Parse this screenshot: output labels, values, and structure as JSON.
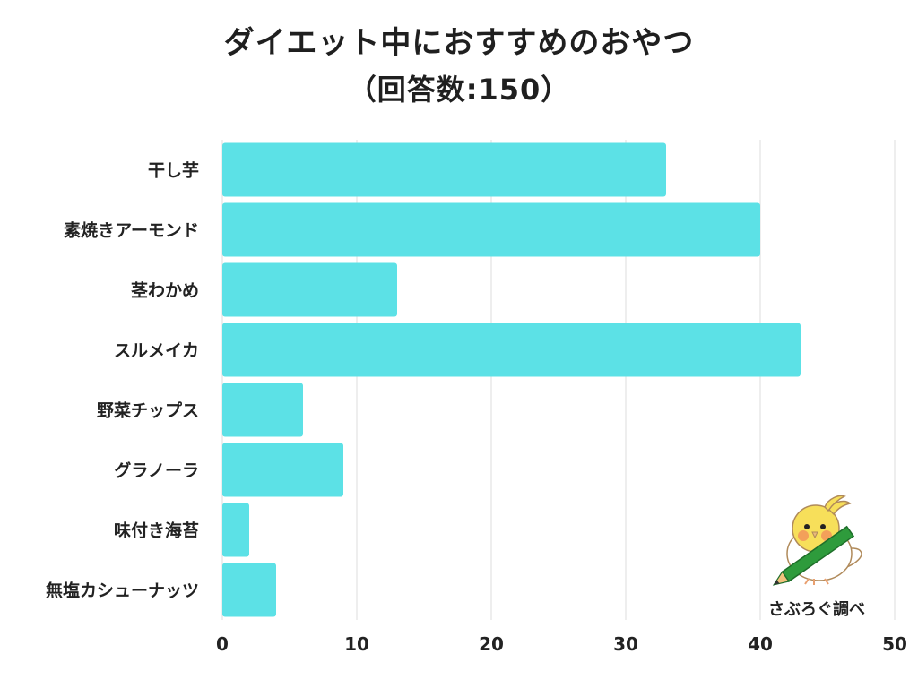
{
  "chart_data": {
    "type": "bar",
    "orientation": "horizontal",
    "title": "ダイエット中におすすめのおやつ",
    "subtitle": "（回答数:150）",
    "categories": [
      "干し芋",
      "素焼きアーモンド",
      "茎わかめ",
      "スルメイカ",
      "野菜チップス",
      "グラノーラ",
      "味付き海苔",
      "無塩カシューナッツ"
    ],
    "values": [
      33,
      40,
      13,
      43,
      6,
      9,
      2,
      4
    ],
    "xlim": [
      0,
      50
    ],
    "xticks": [
      "0",
      "10",
      "20",
      "30",
      "40",
      "50"
    ],
    "grid": true,
    "bar_color": "#5ce1e6",
    "grid_color": "#dddddd"
  },
  "credit": {
    "text": "さぶろぐ調べ",
    "icon": "bird-with-pencil-icon"
  }
}
